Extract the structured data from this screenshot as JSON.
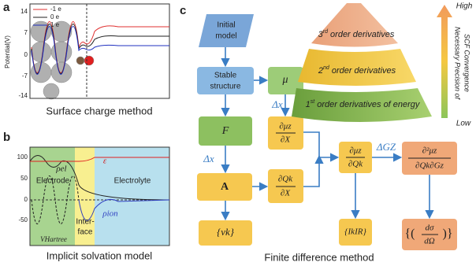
{
  "panel_a": {
    "label": "a",
    "legend": [
      "-1 e",
      "0 e",
      "1 e"
    ],
    "y_label": "Potential(V)",
    "y_ticks": [
      "14",
      "7",
      "0",
      "-7",
      "-14"
    ],
    "caption": "Surface charge method"
  },
  "panel_b": {
    "label": "b",
    "rho_el": "ρel",
    "electrode": "Electrode",
    "interface": [
      "Inter-",
      "face"
    ],
    "epsilon": "ε",
    "electrolyte": "Electrolyte",
    "rho_ion": "ρion",
    "v_hartree": "VHartree",
    "y_ticks": [
      "100",
      "50",
      "0",
      "-50"
    ],
    "caption": "Implicit solvation model"
  },
  "panel_c": {
    "label": "c",
    "nodes": {
      "initial_model": [
        "Initial",
        "model"
      ],
      "stable_structure": [
        "Stable",
        "structure"
      ],
      "mu": "μ",
      "F": "F",
      "A": "A",
      "dmu_dX": [
        "∂μz",
        "∂X"
      ],
      "dQ_dX": [
        "∂Qk",
        "∂X"
      ],
      "dmu_dQ": [
        "∂μz",
        "∂Qk"
      ],
      "d2mu": [
        "∂²μz",
        "∂Qk∂Gz"
      ],
      "nu": "{νk}",
      "IR": "{IkIR}",
      "raman": [
        "dσ",
        "dΩ"
      ]
    },
    "steps": {
      "dx_1": "Δx",
      "dx_2": "Δx",
      "dG": "ΔGZ"
    },
    "pyramid": [
      {
        "num": "3",
        "sup": "rd",
        "text": " order derivatives"
      },
      {
        "num": "2",
        "sup": "nd",
        "text": " order derivatives"
      },
      {
        "num": "1",
        "sup": "st",
        "text": " order derivatives of energy"
      }
    ],
    "scale": {
      "high": "High",
      "title": [
        "Necessary Precision of",
        "SCF Convergence"
      ],
      "low": "Low"
    },
    "caption": "Finite difference method"
  }
}
